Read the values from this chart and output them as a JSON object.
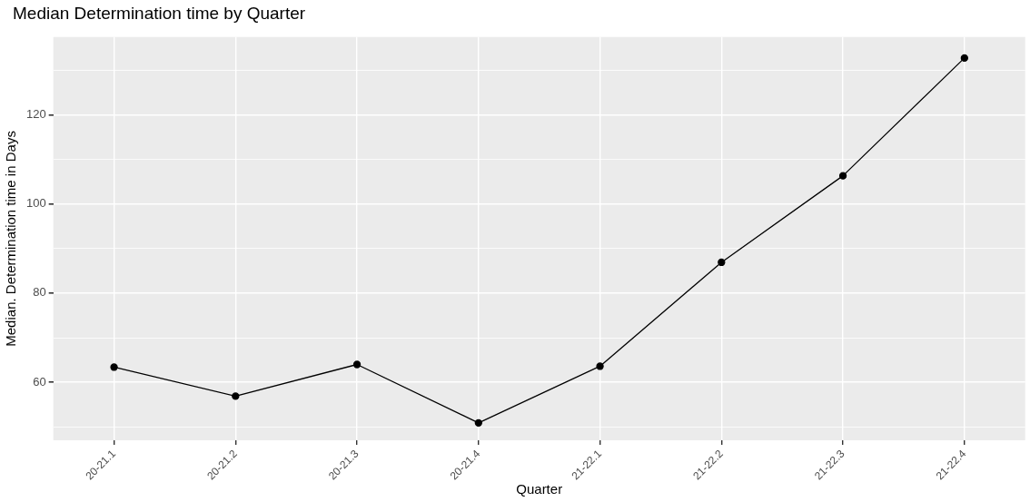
{
  "chart_data": {
    "type": "line",
    "title": "Median Determination time by Quarter",
    "xlabel": "Quarter",
    "ylabel": "Median. Determination time in Days",
    "categories": [
      "20-21.1",
      "20-21.2",
      "20-21.3",
      "20-21.4",
      "21-22.1",
      "21-22.2",
      "21-22.3",
      "21-22.4"
    ],
    "series": [
      {
        "color": "#000000",
        "values": [
          63.4,
          56.9,
          64.0,
          50.9,
          63.6,
          86.9,
          106.3,
          132.7
        ]
      }
    ],
    "ylim": [
      47,
      137.4
    ],
    "yticks": [
      {
        "value": 50,
        "label": null
      },
      60,
      {
        "value": 70,
        "label": null
      },
      80,
      {
        "value": 90,
        "label": null
      },
      100,
      {
        "value": 110,
        "label": null
      },
      120,
      {
        "value": 130,
        "label": null
      }
    ],
    "grid": true,
    "legend": false,
    "marker": "circle",
    "line_style": "solid"
  }
}
